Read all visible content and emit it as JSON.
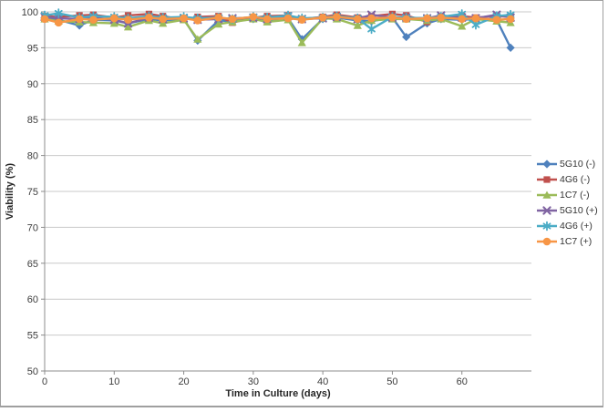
{
  "chart_data": {
    "type": "line",
    "title": "",
    "xlabel": "Time in Culture (days)",
    "ylabel": "Viability (%)",
    "xlim": [
      0,
      70
    ],
    "ylim": [
      50,
      100
    ],
    "x_ticks": [
      0,
      10,
      20,
      30,
      40,
      50,
      60
    ],
    "y_ticks": [
      50,
      55,
      60,
      65,
      70,
      75,
      80,
      85,
      90,
      95,
      100
    ],
    "grid": "horizontal",
    "legend_position": "right",
    "colors": {
      "gridline": "#c9c9c9",
      "axis": "#8c8c8c",
      "tick_text": "#3d3d3d"
    },
    "x": [
      0,
      2,
      5,
      7,
      10,
      12,
      15,
      17,
      20,
      22,
      25,
      27,
      30,
      32,
      35,
      37,
      40,
      42,
      45,
      47,
      50,
      52,
      55,
      57,
      60,
      62,
      65,
      67
    ],
    "series": [
      {
        "name": "5G10 (-)",
        "color": "#4F81BD",
        "marker": "diamond",
        "values": [
          99.2,
          98.9,
          98.1,
          98.9,
          98.8,
          98.4,
          99.0,
          98.8,
          99.0,
          96.0,
          98.8,
          98.7,
          99.0,
          98.9,
          99.1,
          96.2,
          99.0,
          99.2,
          98.8,
          98.7,
          99.2,
          96.5,
          98.4,
          99.0,
          98.9,
          99.0,
          98.9,
          95.0
        ]
      },
      {
        "name": "4G6 (-)",
        "color": "#C0504D",
        "marker": "square",
        "values": [
          99.4,
          99.3,
          99.5,
          99.6,
          99.2,
          99.5,
          99.7,
          99.4,
          98.9,
          99.3,
          99.4,
          98.5,
          99.2,
          99.4,
          99.5,
          99.0,
          99.3,
          99.6,
          99.2,
          99.4,
          99.7,
          99.5,
          98.6,
          99.3,
          99.4,
          99.2,
          99.4,
          99.3
        ]
      },
      {
        "name": "1C7 (-)",
        "color": "#9BBB59",
        "marker": "triangle",
        "values": [
          99.0,
          98.7,
          98.6,
          98.5,
          98.4,
          97.9,
          98.8,
          98.4,
          98.9,
          96.2,
          98.3,
          98.6,
          99.0,
          98.6,
          98.9,
          95.7,
          99.1,
          99.0,
          98.1,
          98.8,
          99.0,
          99.0,
          98.8,
          99.0,
          98.0,
          99.0,
          98.7,
          98.5
        ]
      },
      {
        "name": "5G10 (+)",
        "color": "#8064A2",
        "marker": "x",
        "values": [
          99.3,
          99.1,
          99.0,
          99.2,
          98.9,
          98.4,
          99.2,
          99.0,
          99.1,
          98.9,
          99.0,
          99.1,
          99.2,
          99.0,
          99.4,
          99.0,
          99.1,
          99.3,
          99.0,
          99.6,
          99.2,
          99.2,
          99.1,
          99.5,
          99.2,
          99.1,
          99.6,
          99.2
        ]
      },
      {
        "name": "4G6 (+)",
        "color": "#4BACC6",
        "marker": "asterisk",
        "values": [
          99.5,
          99.8,
          99.2,
          99.4,
          99.3,
          99.1,
          99.4,
          99.2,
          99.3,
          99.1,
          99.2,
          99.0,
          99.3,
          99.2,
          99.5,
          99.1,
          99.2,
          99.4,
          99.1,
          97.6,
          99.3,
          99.2,
          99.1,
          99.3,
          99.7,
          98.2,
          99.4,
          99.6
        ]
      },
      {
        "name": "1C7 (+)",
        "color": "#F79646",
        "marker": "circle",
        "values": [
          99.0,
          98.5,
          99.0,
          98.9,
          99.1,
          98.9,
          99.2,
          99.0,
          99.1,
          98.8,
          99.2,
          99.0,
          99.3,
          99.0,
          99.1,
          98.9,
          99.2,
          99.3,
          99.0,
          99.1,
          99.2,
          99.0,
          99.1,
          99.2,
          99.0,
          99.1,
          98.9,
          99.0
        ]
      }
    ]
  }
}
